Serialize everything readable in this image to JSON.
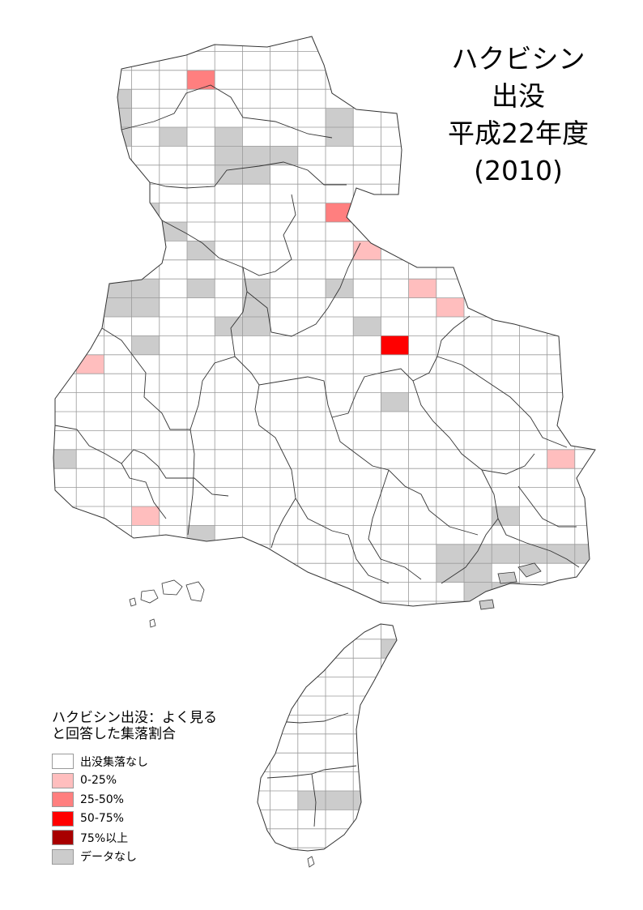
{
  "title": {
    "line1": "ハクビシン",
    "line2": "出没",
    "line3": "平成22年度",
    "line4": "(2010)"
  },
  "legend": {
    "title_line1": "ハクビシン出没：よく見る",
    "title_line2": "と回答した集落割合",
    "items": [
      {
        "label": "出没集落なし",
        "color": "#ffffff"
      },
      {
        "label": "0-25%",
        "color": "#ffbebe"
      },
      {
        "label": "25-50%",
        "color": "#ff7f7f"
      },
      {
        "label": "50-75%",
        "color": "#ff0000"
      },
      {
        "label": "75%以上",
        "color": "#a80000"
      },
      {
        "label": "データなし",
        "color": "#cccccc"
      }
    ]
  },
  "colors": {
    "none": "#ffffff",
    "c0_25": "#ffbebe",
    "c25_50": "#ff7f7f",
    "c50_75": "#ff0000",
    "c75_100": "#a80000",
    "no_data": "#cccccc",
    "grid": "#9a9a9a",
    "border": "#333333"
  }
}
